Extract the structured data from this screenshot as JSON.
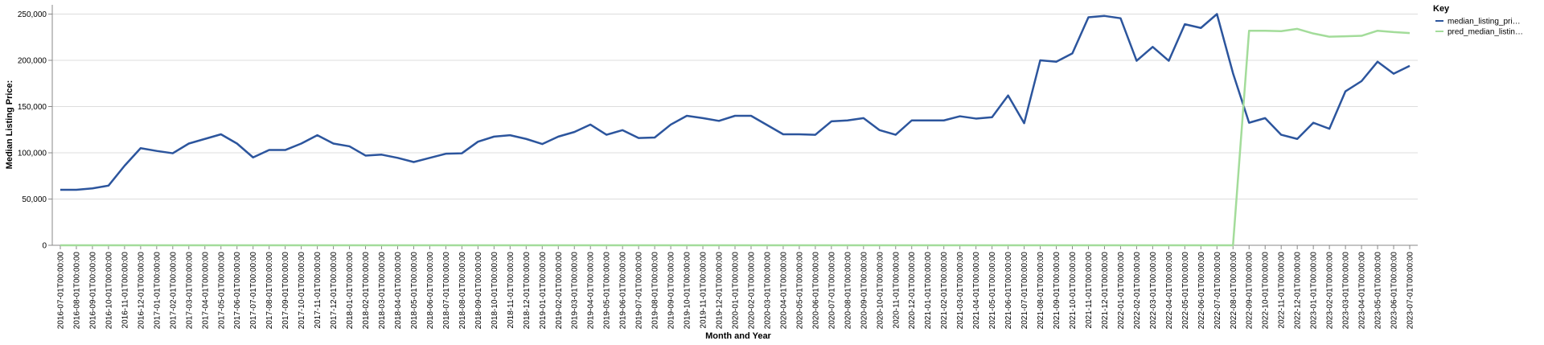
{
  "chart_data": {
    "type": "line",
    "x_label": "Month and Year",
    "y_label": "Median Listing Price:",
    "legend_title": "Key",
    "legend_position": "right",
    "grid": true,
    "categories": [
      "2016-07-01T00:00:00",
      "2016-08-01T00:00:00",
      "2016-09-01T00:00:00",
      "2016-10-01T00:00:00",
      "2016-11-01T00:00:00",
      "2016-12-01T00:00:00",
      "2017-01-01T00:00:00",
      "2017-02-01T00:00:00",
      "2017-03-01T00:00:00",
      "2017-04-01T00:00:00",
      "2017-05-01T00:00:00",
      "2017-06-01T00:00:00",
      "2017-07-01T00:00:00",
      "2017-08-01T00:00:00",
      "2017-09-01T00:00:00",
      "2017-10-01T00:00:00",
      "2017-11-01T00:00:00",
      "2017-12-01T00:00:00",
      "2018-01-01T00:00:00",
      "2018-02-01T00:00:00",
      "2018-03-01T00:00:00",
      "2018-04-01T00:00:00",
      "2018-05-01T00:00:00",
      "2018-06-01T00:00:00",
      "2018-07-01T00:00:00",
      "2018-08-01T00:00:00",
      "2018-09-01T00:00:00",
      "2018-10-01T00:00:00",
      "2018-11-01T00:00:00",
      "2018-12-01T00:00:00",
      "2019-01-01T00:00:00",
      "2019-02-01T00:00:00",
      "2019-03-01T00:00:00",
      "2019-04-01T00:00:00",
      "2019-05-01T00:00:00",
      "2019-06-01T00:00:00",
      "2019-07-01T00:00:00",
      "2019-08-01T00:00:00",
      "2019-09-01T00:00:00",
      "2019-10-01T00:00:00",
      "2019-11-01T00:00:00",
      "2019-12-01T00:00:00",
      "2020-01-01T00:00:00",
      "2020-02-01T00:00:00",
      "2020-03-01T00:00:00",
      "2020-04-01T00:00:00",
      "2020-05-01T00:00:00",
      "2020-06-01T00:00:00",
      "2020-07-01T00:00:00",
      "2020-08-01T00:00:00",
      "2020-09-01T00:00:00",
      "2020-10-01T00:00:00",
      "2020-11-01T00:00:00",
      "2020-12-01T00:00:00",
      "2021-01-01T00:00:00",
      "2021-02-01T00:00:00",
      "2021-03-01T00:00:00",
      "2021-04-01T00:00:00",
      "2021-05-01T00:00:00",
      "2021-06-01T00:00:00",
      "2021-07-01T00:00:00",
      "2021-08-01T00:00:00",
      "2021-09-01T00:00:00",
      "2021-10-01T00:00:00",
      "2021-11-01T00:00:00",
      "2021-12-01T00:00:00",
      "2022-01-01T00:00:00",
      "2022-02-01T00:00:00",
      "2022-03-01T00:00:00",
      "2022-04-01T00:00:00",
      "2022-05-01T00:00:00",
      "2022-06-01T00:00:00",
      "2022-07-01T00:00:00",
      "2022-08-01T00:00:00",
      "2022-09-01T00:00:00",
      "2022-10-01T00:00:00",
      "2022-11-01T00:00:00",
      "2022-12-01T00:00:00",
      "2023-01-01T00:00:00",
      "2023-02-01T00:00:00",
      "2023-03-01T00:00:00",
      "2023-04-01T00:00:00",
      "2023-05-01T00:00:00",
      "2023-06-01T00:00:00",
      "2023-07-01T00:00:00"
    ],
    "series": [
      {
        "name": "median_listing_pri…",
        "color": "#2c559d",
        "values": [
          60000,
          60000,
          61500,
          64500,
          86000,
          105000,
          102000,
          99500,
          110000,
          115000,
          120000,
          110000,
          95000,
          103000,
          103000,
          110000,
          119000,
          110000,
          107000,
          97000,
          98000,
          94500,
          90000,
          94500,
          99000,
          99500,
          112000,
          117500,
          119000,
          115000,
          109500,
          117500,
          122500,
          130500,
          119500,
          124500,
          116000,
          116500,
          130500,
          140000,
          137500,
          134500,
          140000,
          140000,
          130000,
          120000,
          120000,
          119500,
          134000,
          135000,
          137500,
          124500,
          119500,
          135000,
          135000,
          135000,
          139500,
          137000,
          138500,
          162000,
          132000,
          200000,
          198500,
          207500,
          246500,
          248000,
          245500,
          199500,
          214500,
          199500,
          239000,
          235000,
          250000,
          186000,
          132500,
          137500,
          119500,
          115000,
          132500,
          126000,
          166500,
          177500,
          198500,
          185500,
          194000
        ]
      },
      {
        "name": "pred_median_listin…",
        "color": "#a3dc9a",
        "values": [
          0,
          0,
          0,
          0,
          0,
          0,
          0,
          0,
          0,
          0,
          0,
          0,
          0,
          0,
          0,
          0,
          0,
          0,
          0,
          0,
          0,
          0,
          0,
          0,
          0,
          0,
          0,
          0,
          0,
          0,
          0,
          0,
          0,
          0,
          0,
          0,
          0,
          0,
          0,
          0,
          0,
          0,
          0,
          0,
          0,
          0,
          0,
          0,
          0,
          0,
          0,
          0,
          0,
          0,
          0,
          0,
          0,
          0,
          0,
          0,
          0,
          0,
          0,
          0,
          0,
          0,
          0,
          0,
          0,
          0,
          0,
          0,
          0,
          0,
          232000,
          232000,
          231500,
          234000,
          229000,
          225500,
          226000,
          226500,
          232000,
          230500,
          229500
        ]
      }
    ],
    "ylim": [
      0,
      260000
    ],
    "yticks": [
      0,
      {
        "value": 50000,
        "label": "50,000"
      },
      {
        "value": 100000,
        "label": "100,000"
      },
      {
        "value": 150000,
        "label": "150,000"
      },
      {
        "value": 200000,
        "label": "200,000"
      },
      {
        "value": 250000,
        "label": "250,000"
      }
    ]
  }
}
